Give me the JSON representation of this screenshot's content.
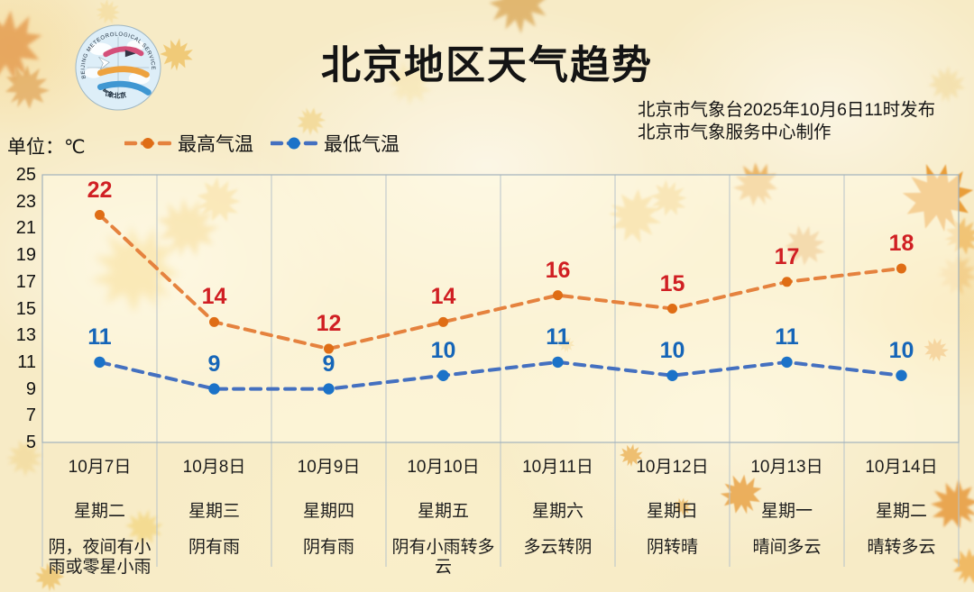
{
  "header": {
    "title": "北京地区天气趋势",
    "issued_by": "北京市气象台2025年10月6日11时发布",
    "produced_by": "北京市气象服务中心制作",
    "logo": {
      "ring_text": "BEIJING METEOROLOGICAL SERVICE",
      "bottom_text": "气象北京"
    }
  },
  "legend": {
    "unit_label": "单位：℃",
    "items": [
      {
        "label": "最高气温",
        "line_color": "#e5823e",
        "dot_color": "#df6d15"
      },
      {
        "label": "最低气温",
        "line_color": "#4470c0",
        "dot_color": "#1b72c8"
      }
    ]
  },
  "chart_data": {
    "type": "line",
    "title": "北京地区天气趋势",
    "unit": "℃",
    "x": [
      "10月7日",
      "10月8日",
      "10月9日",
      "10月10日",
      "10月11日",
      "10月12日",
      "10月13日",
      "10月14日"
    ],
    "weekdays": [
      "星期二",
      "星期三",
      "星期四",
      "星期五",
      "星期六",
      "星期日",
      "星期一",
      "星期二"
    ],
    "weather": [
      "阴，夜间有小雨或零星小雨",
      "阴有雨",
      "阴有雨",
      "阴有小雨转多云",
      "多云转阴",
      "阴转晴",
      "晴间多云",
      "晴转多云"
    ],
    "series": [
      {
        "name": "最高气温",
        "values": [
          22,
          14,
          12,
          14,
          16,
          15,
          17,
          18
        ],
        "line_color": "#e5823e",
        "dot_color": "#df6d15",
        "label_color": "#d01f23"
      },
      {
        "name": "最低气温",
        "values": [
          11,
          9,
          9,
          10,
          11,
          10,
          11,
          10
        ],
        "line_color": "#4470c0",
        "dot_color": "#1b72c8",
        "label_color": "#1565b8"
      }
    ],
    "ylim": [
      5,
      25
    ],
    "yticks": [
      25,
      23,
      21,
      19,
      17,
      15,
      13,
      11,
      9,
      7,
      5
    ],
    "grid": "vertical-only",
    "legend_position": "top-left",
    "line_style": "dashed"
  }
}
